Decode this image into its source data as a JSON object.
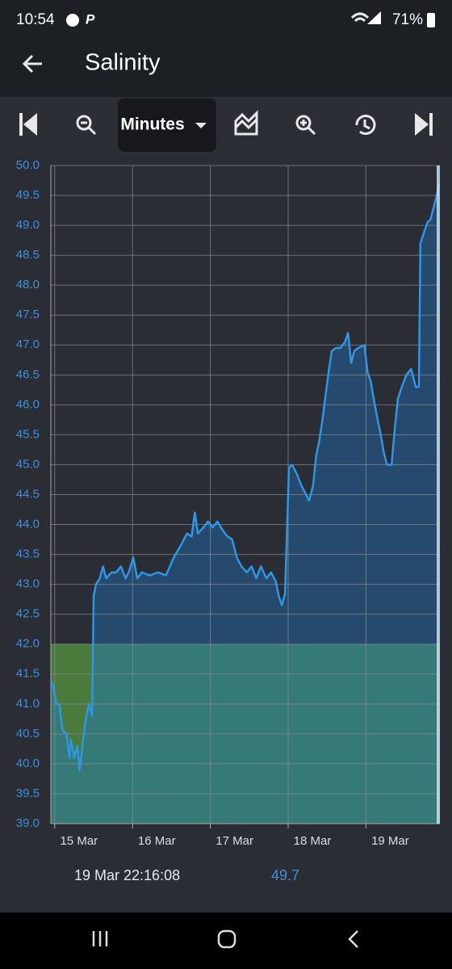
{
  "status_bar": {
    "time": "10:54",
    "battery": "71%"
  },
  "app_bar": {
    "title": "Salinity"
  },
  "toolbar": {
    "range": "Minutes"
  },
  "chart_data": {
    "type": "line",
    "color": "#2f96e6",
    "area_color": "#264a6e",
    "low_color": "#4a7a3c",
    "band_color": "#357a76",
    "threshold": 42,
    "grid": true,
    "xlim": [
      14.95,
      19.95
    ],
    "ylim": [
      39,
      50
    ],
    "xticks": [
      {
        "value": 15,
        "label": "15 Mar"
      },
      {
        "value": 16,
        "label": "16 Mar"
      },
      {
        "value": 17,
        "label": "17 Mar"
      },
      {
        "value": 18,
        "label": "18 Mar"
      },
      {
        "value": 19,
        "label": "19 Mar"
      }
    ],
    "yticks": [
      {
        "value": 39,
        "label": "39.0"
      },
      39.5,
      {
        "value": 40,
        "label": "40.0"
      },
      40.5,
      {
        "value": 41,
        "label": "41.0"
      },
      41.5,
      {
        "value": 42,
        "label": "42.0"
      },
      42.5,
      {
        "value": 43,
        "label": "43.0"
      },
      43.5,
      {
        "value": 44,
        "label": "44.0"
      },
      44.5,
      {
        "value": 45,
        "label": "45.0"
      },
      45.5,
      {
        "value": 46,
        "label": "46.0"
      },
      46.5,
      {
        "value": 47,
        "label": "47.0"
      },
      47.5,
      {
        "value": 48,
        "label": "48.0"
      },
      48.5,
      {
        "value": 49,
        "label": "49.0"
      },
      49.5,
      {
        "value": 50,
        "label": "50.0"
      }
    ],
    "x": [
      14.95,
      14.98,
      15.02,
      15.06,
      15.1,
      15.15,
      15.19,
      15.21,
      15.25,
      15.29,
      15.32,
      15.36,
      15.4,
      15.44,
      15.48,
      15.5,
      15.53,
      15.58,
      15.62,
      15.66,
      15.73,
      15.79,
      15.85,
      15.91,
      15.95,
      16.01,
      16.06,
      16.12,
      16.22,
      16.33,
      16.43,
      16.53,
      16.62,
      16.7,
      16.76,
      16.8,
      16.84,
      16.91,
      16.97,
      17.03,
      17.09,
      17.16,
      17.22,
      17.28,
      17.34,
      17.4,
      17.47,
      17.53,
      17.59,
      17.65,
      17.72,
      17.78,
      17.84,
      17.88,
      17.92,
      17.96,
      18.01,
      18.05,
      18.11,
      18.17,
      18.23,
      18.27,
      18.32,
      18.36,
      18.4,
      18.44,
      18.48,
      18.52,
      18.56,
      18.61,
      18.67,
      18.73,
      18.77,
      18.81,
      18.85,
      18.9,
      18.98,
      19.02,
      19.06,
      19.1,
      19.15,
      19.19,
      19.23,
      19.27,
      19.33,
      19.37,
      19.41,
      19.46,
      19.52,
      19.58,
      19.64,
      19.68,
      19.7,
      19.75,
      19.79,
      19.83,
      19.87,
      19.91,
      19.94
    ],
    "values": [
      41.39,
      41.3,
      41.0,
      41.0,
      40.55,
      40.5,
      40.1,
      40.4,
      40.1,
      40.3,
      39.9,
      40.35,
      40.75,
      41.0,
      40.8,
      42.8,
      43.0,
      43.1,
      43.3,
      43.1,
      43.2,
      43.2,
      43.3,
      43.1,
      43.2,
      43.45,
      43.1,
      43.2,
      43.15,
      43.2,
      43.15,
      43.45,
      43.65,
      43.85,
      43.8,
      44.2,
      43.85,
      43.95,
      44.05,
      43.95,
      44.05,
      43.9,
      43.8,
      43.75,
      43.45,
      43.3,
      43.2,
      43.3,
      43.1,
      43.3,
      43.1,
      43.2,
      43.05,
      42.8,
      42.65,
      42.85,
      44.95,
      45.0,
      44.85,
      44.65,
      44.5,
      44.4,
      44.65,
      45.15,
      45.4,
      45.75,
      46.15,
      46.55,
      46.9,
      46.95,
      46.95,
      47.05,
      47.2,
      46.7,
      46.9,
      46.95,
      47.0,
      46.55,
      46.4,
      46.1,
      45.75,
      45.5,
      45.2,
      45.0,
      45.0,
      45.6,
      46.1,
      46.3,
      46.5,
      46.6,
      46.3,
      46.3,
      48.7,
      48.9,
      49.05,
      49.1,
      49.3,
      49.5,
      49.7
    ]
  },
  "footer": {
    "timestamp": "19 Mar 22:16:08",
    "value": "49.7"
  }
}
